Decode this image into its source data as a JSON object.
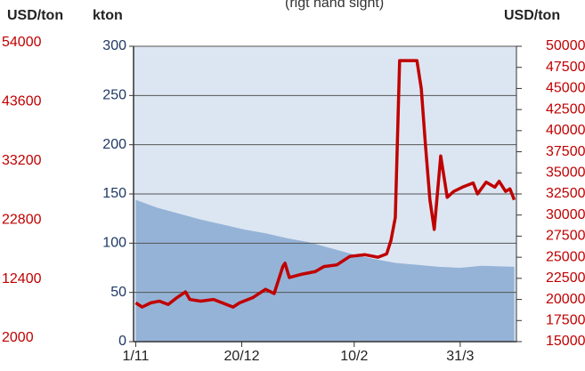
{
  "chart_data": {
    "type": "area-line",
    "subtitle": "(rigt hand sight)",
    "y3_label": "USD/ton",
    "y_label": "kton",
    "y2_label": "USD/ton",
    "xlim": [
      -1,
      176
    ],
    "xticks": [
      {
        "value": 0,
        "label": "1/11"
      },
      {
        "value": 49,
        "label": "20/12"
      },
      {
        "value": 101,
        "label": "10/2"
      },
      {
        "value": 150,
        "label": "31/3"
      }
    ],
    "ylim": [
      0,
      300
    ],
    "yticks": [
      0,
      50,
      100,
      150,
      200,
      250,
      300
    ],
    "y2lim": [
      15000,
      50000
    ],
    "y2ticks": [
      15000,
      17500,
      20000,
      22500,
      25000,
      27500,
      30000,
      32500,
      35000,
      37500,
      40000,
      42500,
      45000,
      47500,
      50000
    ],
    "y3lim": [
      2000,
      54000
    ],
    "y3ticks": [
      2000,
      12400,
      22800,
      33200,
      43600,
      54000
    ],
    "grid": true,
    "plot_background": "#dce6f2",
    "series": [
      {
        "kind": "area",
        "axis": "y",
        "color": "#95b3d7",
        "x": [
          0,
          10,
          20,
          30,
          40,
          50,
          60,
          70,
          80,
          90,
          100,
          110,
          120,
          130,
          140,
          150,
          160,
          175
        ],
        "values": [
          144,
          136,
          130,
          124,
          119,
          114,
          110,
          105,
          101,
          95,
          89,
          84,
          80,
          78,
          76,
          75,
          77,
          76
        ]
      },
      {
        "kind": "line",
        "axis": "y2",
        "color": "#c00000",
        "x": [
          0,
          3,
          7,
          11,
          15,
          19,
          23,
          25,
          30,
          36,
          40,
          45,
          48,
          54,
          60,
          64,
          68,
          69,
          71,
          77,
          83,
          87,
          93,
          99,
          106,
          112,
          116,
          118,
          120,
          122,
          130,
          132,
          134,
          136,
          138,
          141,
          144,
          147,
          151,
          156,
          158,
          162,
          166,
          168,
          171,
          173,
          175
        ],
        "values": [
          19600,
          19100,
          19600,
          19800,
          19400,
          20200,
          20900,
          20000,
          19800,
          20000,
          19600,
          19100,
          19600,
          20200,
          21200,
          20700,
          23900,
          24300,
          22600,
          23000,
          23300,
          23900,
          24100,
          25100,
          25300,
          25000,
          25400,
          27000,
          29700,
          48300,
          48300,
          45000,
          38100,
          31800,
          28300,
          37000,
          32100,
          32800,
          33300,
          33800,
          32500,
          33900,
          33300,
          34000,
          32800,
          33100,
          31800
        ]
      }
    ]
  }
}
